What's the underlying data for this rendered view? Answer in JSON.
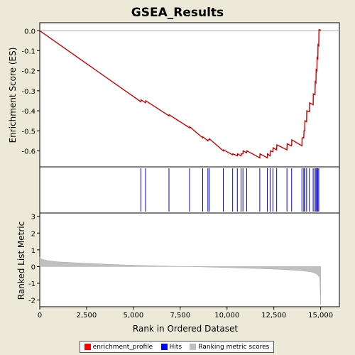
{
  "chart_data": {
    "type": "line",
    "title": "GSEA_Results",
    "xlabel": "Rank in Ordered Dataset",
    "xlim": [
      0,
      16000
    ],
    "x_ticks": [
      0,
      2500,
      5000,
      7500,
      10000,
      12500,
      15000
    ],
    "x_tick_labels": [
      "0",
      "2,500",
      "5,000",
      "7,500",
      "10,000",
      "12,500",
      "15,000"
    ],
    "enrichment_panel": {
      "ylabel": "Enrichment Score (ES)",
      "ylim": [
        -0.68,
        0.04
      ],
      "y_ticks": [
        0.0,
        -0.1,
        -0.2,
        -0.3,
        -0.4,
        -0.5,
        -0.6
      ],
      "y_tick_labels": [
        "0.0",
        "-0.1",
        "-0.2",
        "-0.3",
        "-0.4",
        "-0.5",
        "-0.6"
      ],
      "color": "#cc0000",
      "points": [
        [
          0,
          0.0
        ],
        [
          5400,
          -0.355
        ],
        [
          5410,
          -0.345
        ],
        [
          5650,
          -0.36
        ],
        [
          5660,
          -0.35
        ],
        [
          6900,
          -0.425
        ],
        [
          6910,
          -0.42
        ],
        [
          8000,
          -0.485
        ],
        [
          8010,
          -0.48
        ],
        [
          8700,
          -0.535
        ],
        [
          8710,
          -0.53
        ],
        [
          8980,
          -0.55
        ],
        [
          8990,
          -0.545
        ],
        [
          9050,
          -0.545
        ],
        [
          9060,
          -0.54
        ],
        [
          9800,
          -0.6
        ],
        [
          9810,
          -0.595
        ],
        [
          10300,
          -0.62
        ],
        [
          10310,
          -0.615
        ],
        [
          10550,
          -0.625
        ],
        [
          10560,
          -0.615
        ],
        [
          10750,
          -0.625
        ],
        [
          10760,
          -0.615
        ],
        [
          10850,
          -0.615
        ],
        [
          10860,
          -0.6
        ],
        [
          11050,
          -0.61
        ],
        [
          11060,
          -0.6
        ],
        [
          11750,
          -0.635
        ],
        [
          11760,
          -0.615
        ],
        [
          12150,
          -0.635
        ],
        [
          12160,
          -0.615
        ],
        [
          12300,
          -0.625
        ],
        [
          12310,
          -0.6
        ],
        [
          12450,
          -0.605
        ],
        [
          12460,
          -0.585
        ],
        [
          12650,
          -0.595
        ],
        [
          12660,
          -0.57
        ],
        [
          13200,
          -0.595
        ],
        [
          13210,
          -0.565
        ],
        [
          13450,
          -0.575
        ],
        [
          13460,
          -0.545
        ],
        [
          14000,
          -0.575
        ],
        [
          14010,
          -0.535
        ],
        [
          14100,
          -0.535
        ],
        [
          14110,
          -0.5
        ],
        [
          14150,
          -0.5
        ],
        [
          14160,
          -0.45
        ],
        [
          14250,
          -0.455
        ],
        [
          14260,
          -0.4
        ],
        [
          14400,
          -0.405
        ],
        [
          14410,
          -0.36
        ],
        [
          14600,
          -0.37
        ],
        [
          14610,
          -0.315
        ],
        [
          14700,
          -0.32
        ],
        [
          14710,
          -0.255
        ],
        [
          14750,
          -0.26
        ],
        [
          14760,
          -0.195
        ],
        [
          14800,
          -0.2
        ],
        [
          14810,
          -0.135
        ],
        [
          14850,
          -0.14
        ],
        [
          14860,
          -0.07
        ],
        [
          14900,
          -0.075
        ],
        [
          14910,
          0.005
        ],
        [
          14960,
          0.005
        ],
        [
          15000,
          0.0
        ]
      ]
    },
    "hits_panel": {
      "color": "#0000cc",
      "hits": [
        5400,
        5650,
        6900,
        8000,
        8700,
        8980,
        9050,
        9800,
        10300,
        10550,
        10750,
        10850,
        11050,
        11750,
        12150,
        12300,
        12450,
        12650,
        13200,
        13450,
        14000,
        14100,
        14150,
        14250,
        14400,
        14600,
        14700,
        14750,
        14800,
        14850,
        14900
      ]
    },
    "ranking_panel": {
      "ylabel": "Ranked List Metric",
      "ylim": [
        -2.4,
        3.2
      ],
      "y_ticks": [
        3,
        2,
        1,
        0,
        -1,
        -2
      ],
      "y_tick_labels": [
        "3",
        "2",
        "1",
        "0",
        "-1",
        "-2"
      ],
      "color": "#c0c0c0",
      "profile": [
        [
          0,
          0.58
        ],
        [
          100,
          0.45
        ],
        [
          400,
          0.36
        ],
        [
          1000,
          0.28
        ],
        [
          2000,
          0.22
        ],
        [
          3000,
          0.17
        ],
        [
          4000,
          0.12
        ],
        [
          5000,
          0.08
        ],
        [
          6000,
          0.05
        ],
        [
          7000,
          0.02
        ],
        [
          8000,
          0.0
        ],
        [
          9000,
          -0.03
        ],
        [
          10000,
          -0.06
        ],
        [
          11000,
          -0.1
        ],
        [
          12000,
          -0.13
        ],
        [
          13000,
          -0.18
        ],
        [
          14000,
          -0.25
        ],
        [
          14500,
          -0.32
        ],
        [
          14800,
          -0.45
        ],
        [
          14950,
          -0.65
        ],
        [
          15000,
          -2.3
        ]
      ]
    },
    "legend": {
      "placement": "bottom",
      "entries": [
        {
          "label": "enrichment_profile",
          "color": "#ff0000"
        },
        {
          "label": "Hits",
          "color": "#0000ff"
        },
        {
          "label": "Ranking metric scores",
          "color": "#c0c0c0"
        }
      ]
    }
  }
}
